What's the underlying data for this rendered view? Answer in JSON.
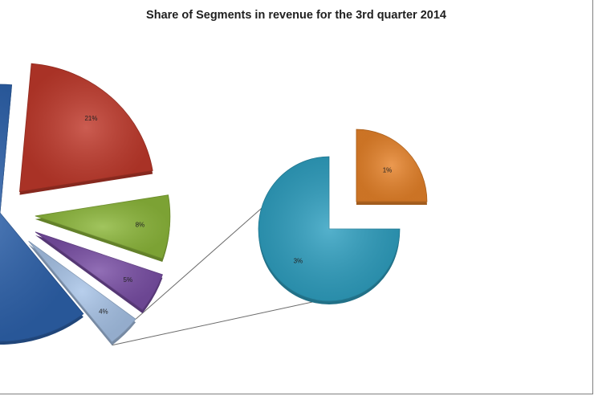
{
  "chart_data": {
    "type": "pie",
    "title": "Share of Segments in revenue for the 3rd quarter 2014",
    "main_pie": {
      "slices": [
        {
          "value": 21,
          "label": "21%",
          "color": "#c0392b"
        },
        {
          "value": 8,
          "label": "8%",
          "color": "#8db83b"
        },
        {
          "value": 5,
          "label": "5%",
          "color": "#7a4fa6"
        },
        {
          "value": 4,
          "label": "4%",
          "color": "#a8c4e8"
        },
        {
          "value": 62,
          "label": "",
          "color": "#2e63ad"
        }
      ]
    },
    "breakout_pie": {
      "source_slice": "4%",
      "slices": [
        {
          "value": 1,
          "label": "1%",
          "color": "#e7832a"
        },
        {
          "value": 3,
          "label": "3%",
          "color": "#2fa0c1"
        }
      ]
    },
    "legend": "none",
    "grid": false
  }
}
